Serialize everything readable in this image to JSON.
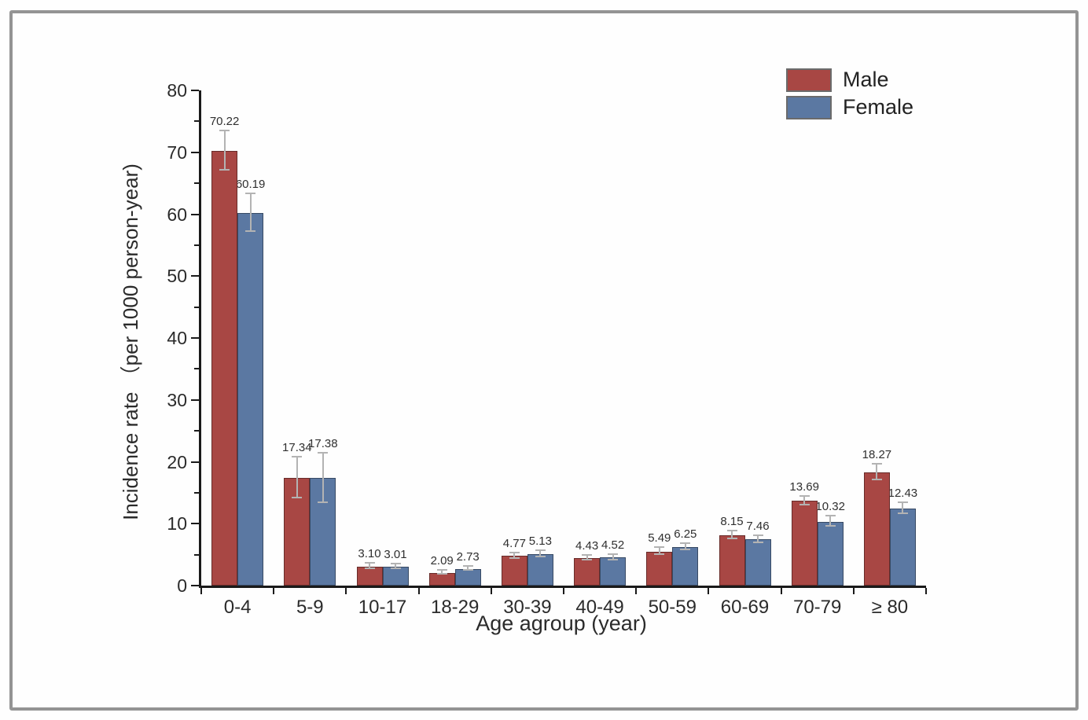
{
  "figure": {
    "background": "#fefefe",
    "frame_color": "#949494"
  },
  "chart_data": {
    "type": "bar",
    "title": "",
    "xlabel": "Age agroup (year)",
    "ylabel": "Incidence rate （per 1000 person-year)",
    "ylim": [
      0,
      80
    ],
    "y_major_ticks": [
      0,
      10,
      20,
      30,
      40,
      50,
      60,
      70,
      80
    ],
    "y_minor_step": 5,
    "grid": false,
    "legend_position": "top-right",
    "axis_color": "#1a1a1a",
    "error_bar_color": "#b3b3b3",
    "value_label_color": "#2f2f2f",
    "categories": [
      "0-4",
      "5-9",
      "10-17",
      "18-29",
      "30-39",
      "40-49",
      "50-59",
      "60-69",
      "70-79",
      "≥ 80"
    ],
    "series": [
      {
        "name": "Male",
        "color": "#a84744",
        "values": [
          70.22,
          17.34,
          3.1,
          2.09,
          4.77,
          4.43,
          5.49,
          8.15,
          13.69,
          18.27
        ],
        "errors": [
          3.2,
          3.3,
          0.45,
          0.3,
          0.5,
          0.4,
          0.55,
          0.6,
          0.7,
          1.3
        ]
      },
      {
        "name": "Female",
        "color": "#5b78a2",
        "values": [
          60.19,
          17.38,
          3.01,
          2.73,
          5.13,
          4.52,
          6.25,
          7.46,
          10.32,
          12.43
        ],
        "errors": [
          3.1,
          4.0,
          0.4,
          0.35,
          0.5,
          0.4,
          0.5,
          0.55,
          0.85,
          0.9
        ]
      }
    ]
  }
}
